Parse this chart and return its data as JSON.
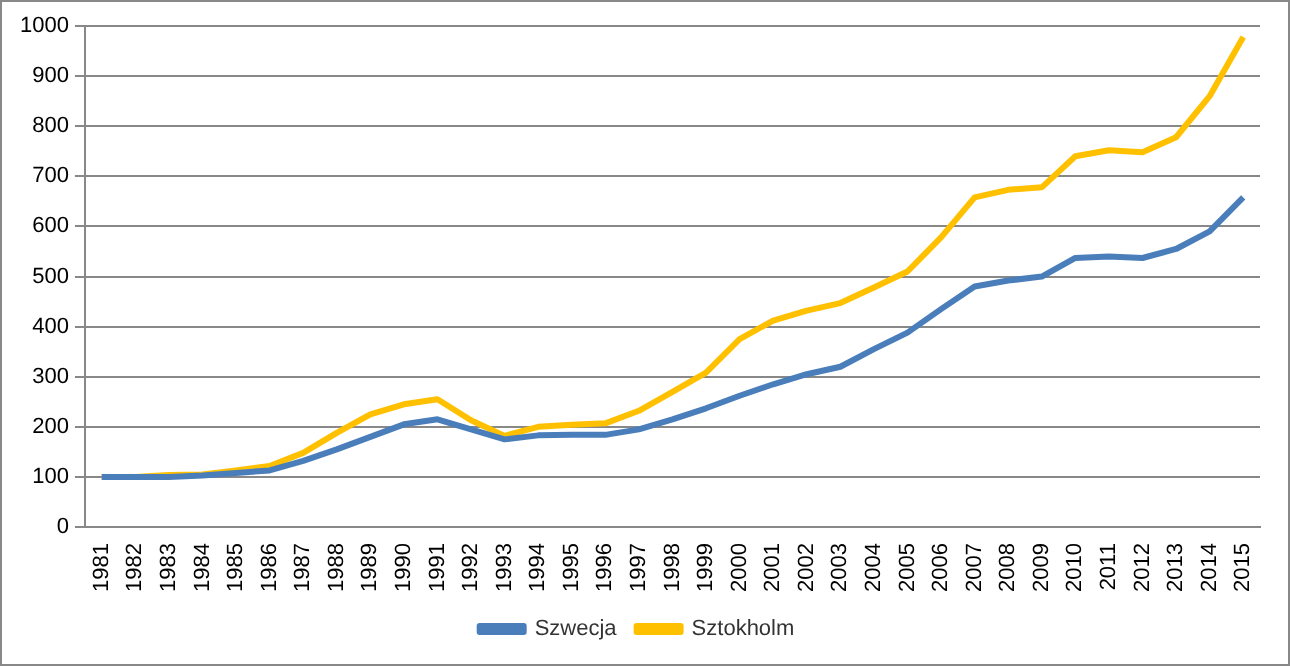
{
  "chart_data": {
    "type": "line",
    "categories": [
      "1981",
      "1982",
      "1983",
      "1984",
      "1985",
      "1986",
      "1987",
      "1988",
      "1989",
      "1990",
      "1991",
      "1992",
      "1993",
      "1994",
      "1995",
      "1996",
      "1997",
      "1998",
      "1999",
      "2000",
      "2001",
      "2002",
      "2003",
      "2004",
      "2005",
      "2006",
      "2007",
      "2008",
      "2009",
      "2010",
      "2011",
      "2012",
      "2013",
      "2014",
      "2015"
    ],
    "series": [
      {
        "name": "Szwecja",
        "color": "#4a7ebb",
        "values": [
          100,
          100,
          100,
          103,
          108,
          113,
          132,
          155,
          180,
          205,
          215,
          195,
          175,
          183,
          184,
          184,
          195,
          215,
          237,
          262,
          285,
          305,
          320,
          355,
          388,
          435,
          480,
          492,
          500,
          537,
          540,
          537,
          555,
          590,
          658
        ]
      },
      {
        "name": "Sztokholm",
        "color": "#ffc000",
        "values": [
          100,
          100,
          104,
          105,
          113,
          122,
          148,
          188,
          225,
          245,
          255,
          213,
          182,
          200,
          204,
          207,
          232,
          270,
          308,
          375,
          412,
          432,
          447,
          478,
          510,
          578,
          658,
          673,
          678,
          740,
          752,
          748,
          778,
          860,
          978
        ]
      }
    ],
    "ylim": [
      0,
      1000
    ],
    "yticks": [
      0,
      100,
      200,
      300,
      400,
      500,
      600,
      700,
      800,
      900,
      1000
    ],
    "grid": "y",
    "legend": "bottom",
    "marker": "none",
    "line_style": "solid"
  }
}
